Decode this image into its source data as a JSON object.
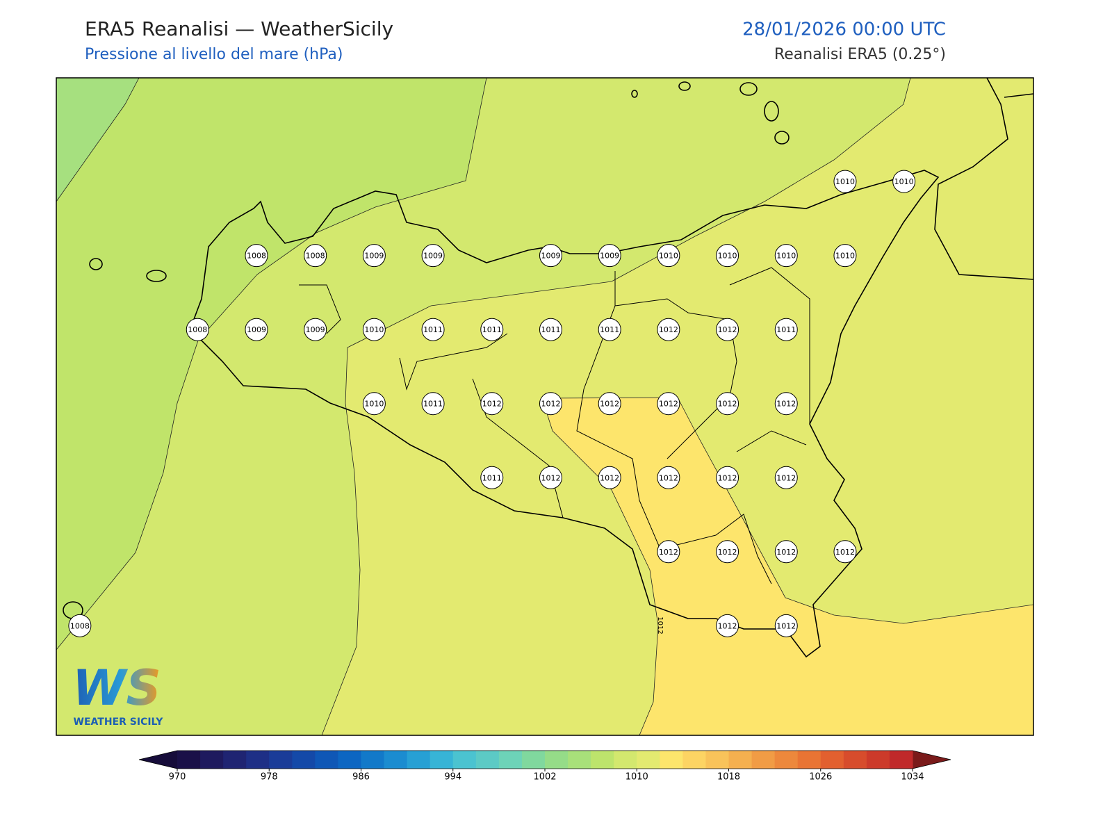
{
  "header": {
    "title": "ERA5 Reanalisi — WeatherSicily",
    "subtitle": "Pressione al livello del mare (hPa)",
    "datetime": "28/01/2026 00:00 UTC",
    "source": "Reanalisi ERA5 (0.25°)"
  },
  "map": {
    "extent": {
      "lon": [
        11.9,
        16.05
      ],
      "lat": [
        36.38,
        38.6
      ]
    },
    "contour_label": "1012",
    "stations": [
      {
        "lon": 15.25,
        "lat": 38.25,
        "value": 1010
      },
      {
        "lon": 15.5,
        "lat": 38.25,
        "value": 1010
      },
      {
        "lon": 12.75,
        "lat": 38.0,
        "value": 1008
      },
      {
        "lon": 13.0,
        "lat": 38.0,
        "value": 1008
      },
      {
        "lon": 13.25,
        "lat": 38.0,
        "value": 1009
      },
      {
        "lon": 13.5,
        "lat": 38.0,
        "value": 1009
      },
      {
        "lon": 14.0,
        "lat": 38.0,
        "value": 1009
      },
      {
        "lon": 14.25,
        "lat": 38.0,
        "value": 1009
      },
      {
        "lon": 14.5,
        "lat": 38.0,
        "value": 1010
      },
      {
        "lon": 14.75,
        "lat": 38.0,
        "value": 1010
      },
      {
        "lon": 15.0,
        "lat": 38.0,
        "value": 1010
      },
      {
        "lon": 15.25,
        "lat": 38.0,
        "value": 1010
      },
      {
        "lon": 12.5,
        "lat": 37.75,
        "value": 1008
      },
      {
        "lon": 12.75,
        "lat": 37.75,
        "value": 1009
      },
      {
        "lon": 13.0,
        "lat": 37.75,
        "value": 1009
      },
      {
        "lon": 13.25,
        "lat": 37.75,
        "value": 1010
      },
      {
        "lon": 13.5,
        "lat": 37.75,
        "value": 1011
      },
      {
        "lon": 13.75,
        "lat": 37.75,
        "value": 1011
      },
      {
        "lon": 14.0,
        "lat": 37.75,
        "value": 1011
      },
      {
        "lon": 14.25,
        "lat": 37.75,
        "value": 1011
      },
      {
        "lon": 14.5,
        "lat": 37.75,
        "value": 1012
      },
      {
        "lon": 14.75,
        "lat": 37.75,
        "value": 1012
      },
      {
        "lon": 15.0,
        "lat": 37.75,
        "value": 1011
      },
      {
        "lon": 13.25,
        "lat": 37.5,
        "value": 1010
      },
      {
        "lon": 13.5,
        "lat": 37.5,
        "value": 1011
      },
      {
        "lon": 13.75,
        "lat": 37.5,
        "value": 1012
      },
      {
        "lon": 14.0,
        "lat": 37.5,
        "value": 1012
      },
      {
        "lon": 14.25,
        "lat": 37.5,
        "value": 1012
      },
      {
        "lon": 14.5,
        "lat": 37.5,
        "value": 1012
      },
      {
        "lon": 14.75,
        "lat": 37.5,
        "value": 1012
      },
      {
        "lon": 15.0,
        "lat": 37.5,
        "value": 1012
      },
      {
        "lon": 13.75,
        "lat": 37.25,
        "value": 1011
      },
      {
        "lon": 14.0,
        "lat": 37.25,
        "value": 1012
      },
      {
        "lon": 14.25,
        "lat": 37.25,
        "value": 1012
      },
      {
        "lon": 14.5,
        "lat": 37.25,
        "value": 1012
      },
      {
        "lon": 14.75,
        "lat": 37.25,
        "value": 1012
      },
      {
        "lon": 15.0,
        "lat": 37.25,
        "value": 1012
      },
      {
        "lon": 14.5,
        "lat": 37.0,
        "value": 1012
      },
      {
        "lon": 14.75,
        "lat": 37.0,
        "value": 1012
      },
      {
        "lon": 15.0,
        "lat": 37.0,
        "value": 1012
      },
      {
        "lon": 15.25,
        "lat": 37.0,
        "value": 1012
      },
      {
        "lon": 12.0,
        "lat": 36.75,
        "value": 1008
      },
      {
        "lon": 14.75,
        "lat": 36.75,
        "value": 1012
      },
      {
        "lon": 15.0,
        "lat": 36.75,
        "value": 1012
      }
    ]
  },
  "colorbar": {
    "min": 970,
    "max": 1034,
    "ticks": [
      970,
      978,
      986,
      994,
      1002,
      1010,
      1018,
      1026,
      1034
    ],
    "colors": [
      "#1a1048",
      "#1e1a5e",
      "#1f2472",
      "#1e2f86",
      "#1a3c98",
      "#1449a8",
      "#0f57b6",
      "#0d66c2",
      "#1279c9",
      "#1b8cd0",
      "#27a0d4",
      "#37b4d6",
      "#4bc3d0",
      "#5ccac5",
      "#6dd3b8",
      "#80d89e",
      "#95dc88",
      "#a8e07a",
      "#bde46c",
      "#d3e86e",
      "#e3ea70",
      "#fde56c",
      "#fdd463",
      "#f9c35a",
      "#f5b04f",
      "#f19c45",
      "#ed883c",
      "#e97434",
      "#e2602f",
      "#d74c2c",
      "#cc3a2a",
      "#c0292a"
    ],
    "under_color": "#160c3a",
    "over_color": "#7a1a1a"
  },
  "logo": {
    "mark": "WS",
    "name": "WEATHER SICILY"
  }
}
